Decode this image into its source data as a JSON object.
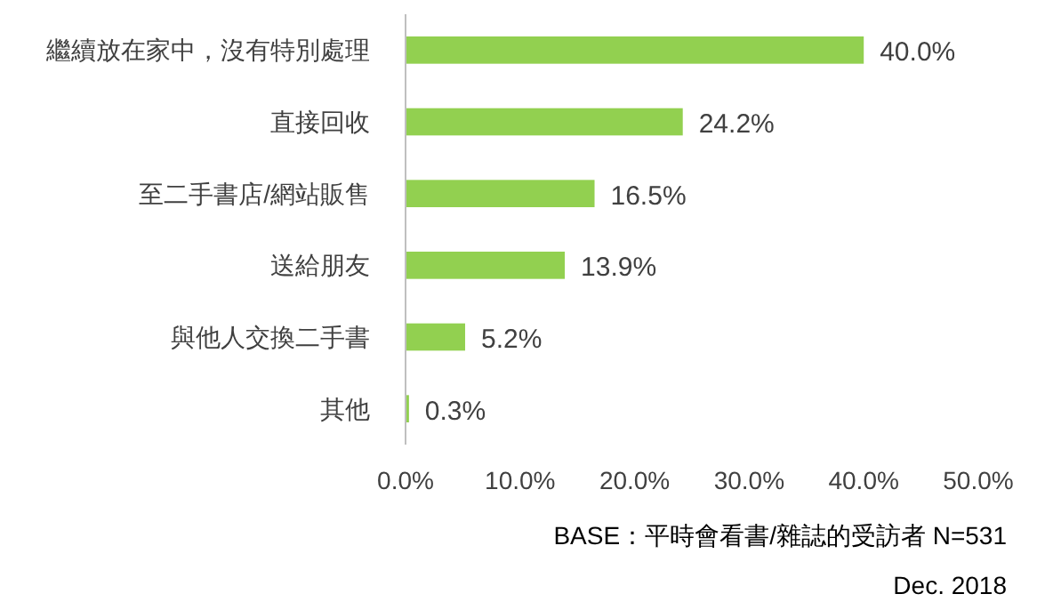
{
  "chart_data": {
    "type": "bar",
    "orientation": "horizontal",
    "categories": [
      "繼續放在家中，沒有特別處理",
      "直接回收",
      "至二手書店/網站販售",
      "送給朋友",
      "與他人交換二手書",
      "其他"
    ],
    "values": [
      40.0,
      24.2,
      16.5,
      13.9,
      5.2,
      0.3
    ],
    "value_labels": [
      "40.0%",
      "24.2%",
      "16.5%",
      "13.9%",
      "5.2%",
      "0.3%"
    ],
    "color": "#92d050",
    "xlim": [
      0,
      50
    ],
    "xticks": [
      {
        "value": 0,
        "label": "0.0%"
      },
      {
        "value": 10,
        "label": "10.0%"
      },
      {
        "value": 20,
        "label": "20.0%"
      },
      {
        "value": 30,
        "label": "30.0%"
      },
      {
        "value": 40,
        "label": "40.0%"
      },
      {
        "value": 50,
        "label": "50.0%"
      }
    ],
    "annotations": [
      "BASE：平時會看書/雜誌的受訪者 N=531",
      "Dec. 2018"
    ]
  }
}
